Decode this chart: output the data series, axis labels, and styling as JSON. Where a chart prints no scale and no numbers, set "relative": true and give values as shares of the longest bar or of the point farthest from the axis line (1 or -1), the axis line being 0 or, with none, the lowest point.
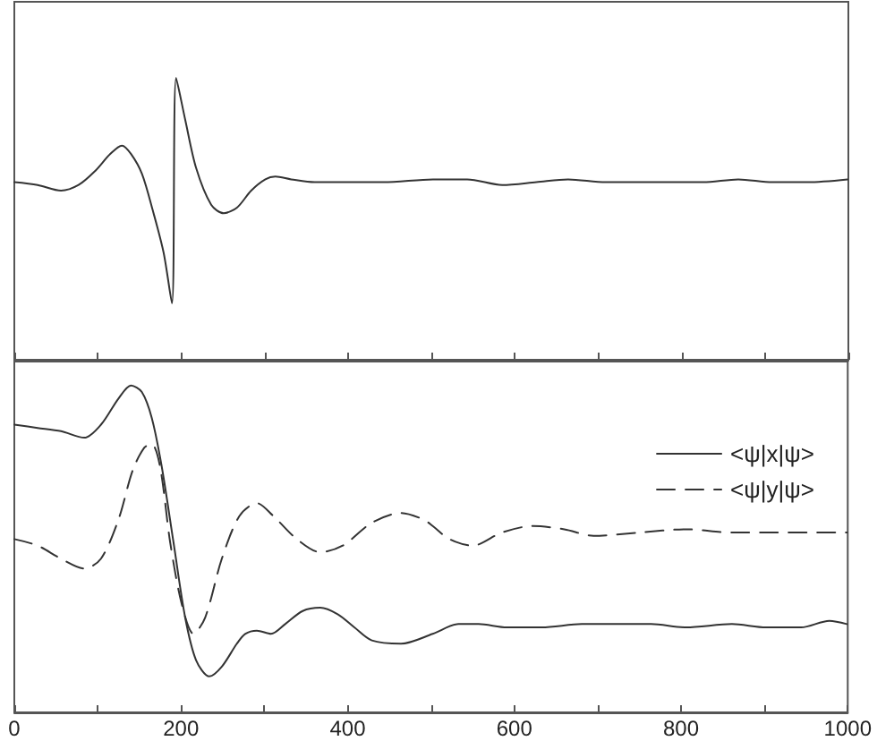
{
  "chart_data": [
    {
      "type": "line",
      "relative": true,
      "color": "#333333",
      "line_style": "solid",
      "xlim": [
        0,
        1000
      ],
      "xticks": [
        0,
        {
          "value": 100,
          "label": null
        },
        200,
        {
          "value": 300,
          "label": null
        },
        400,
        {
          "value": 500,
          "label": null
        },
        600,
        {
          "value": 700,
          "label": null
        },
        800,
        {
          "value": 900,
          "label": null
        },
        1000
      ],
      "tick_labels": false,
      "x": [
        0,
        28,
        56,
        77,
        97,
        115,
        129,
        140,
        153,
        166,
        179,
        189,
        194,
        205,
        218,
        236,
        251,
        267,
        284,
        301,
        313,
        332,
        360,
        402,
        443,
        502,
        543,
        585,
        626,
        664,
        709,
        750,
        792,
        826,
        868,
        909,
        951,
        999
      ],
      "values": [
        0.63,
        0.62,
        0.6,
        0.62,
        0.67,
        0.73,
        0.76,
        0.73,
        0.66,
        0.53,
        0.38,
        0.2,
        1.0,
        0.85,
        0.68,
        0.55,
        0.52,
        0.54,
        0.6,
        0.64,
        0.65,
        0.64,
        0.63,
        0.63,
        0.63,
        0.64,
        0.64,
        0.62,
        0.63,
        0.64,
        0.63,
        0.63,
        0.63,
        0.63,
        0.64,
        0.63,
        0.63,
        0.64
      ]
    },
    {
      "type": "line",
      "relative": true,
      "xlim": [
        0,
        1000
      ],
      "xticks": [
        0,
        {
          "value": 100,
          "label": null
        },
        200,
        {
          "value": 300,
          "label": null
        },
        400,
        {
          "value": 500,
          "label": null
        },
        600,
        {
          "value": 700,
          "label": null
        },
        800,
        {
          "value": 900,
          "label": null
        },
        1000
      ],
      "tick_labels": "x",
      "legend": "top right",
      "series": [
        {
          "name": "<ψ|x|ψ>",
          "color": "#333333",
          "line_style": "solid",
          "x": [
            0,
            28,
            56,
            84,
            104,
            125,
            140,
            153,
            165,
            177,
            191,
            205,
            218,
            234,
            249,
            267,
            277,
            291,
            308,
            325,
            346,
            367,
            388,
            408,
            429,
            464,
            502,
            533,
            557,
            591,
            633,
            681,
            730,
            764,
            806,
            861,
            902,
            944,
            978,
            999
          ],
          "values": [
            0.88,
            0.87,
            0.86,
            0.84,
            0.88,
            0.96,
            1.0,
            0.98,
            0.9,
            0.75,
            0.52,
            0.29,
            0.16,
            0.11,
            0.14,
            0.21,
            0.24,
            0.25,
            0.24,
            0.27,
            0.31,
            0.32,
            0.3,
            0.26,
            0.22,
            0.21,
            0.24,
            0.27,
            0.27,
            0.26,
            0.26,
            0.27,
            0.27,
            0.27,
            0.26,
            0.27,
            0.26,
            0.26,
            0.28,
            0.27
          ]
        },
        {
          "name": "<ψ|y|ψ>",
          "color": "#333333",
          "line_style": "dashed",
          "x": [
            0,
            28,
            56,
            84,
            104,
            125,
            142,
            156,
            165,
            175,
            187,
            201,
            215,
            229,
            249,
            270,
            291,
            311,
            339,
            367,
            394,
            429,
            464,
            491,
            502,
            522,
            550,
            585,
            622,
            660,
            695,
            750,
            806,
            861,
            916,
            958,
            999
          ],
          "values": [
            0.53,
            0.51,
            0.47,
            0.44,
            0.47,
            0.59,
            0.74,
            0.81,
            0.82,
            0.75,
            0.52,
            0.33,
            0.24,
            0.29,
            0.47,
            0.6,
            0.64,
            0.6,
            0.53,
            0.49,
            0.51,
            0.58,
            0.61,
            0.59,
            0.57,
            0.53,
            0.51,
            0.55,
            0.57,
            0.56,
            0.54,
            0.55,
            0.56,
            0.55,
            0.55,
            0.55,
            0.55
          ]
        }
      ]
    }
  ]
}
